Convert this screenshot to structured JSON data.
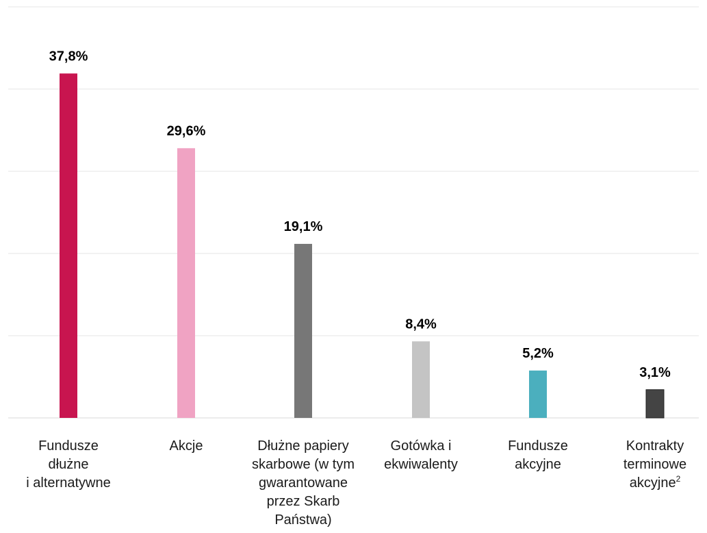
{
  "chart_data": {
    "type": "bar",
    "categories": [
      "Fundusze dłużne i alternatywne",
      "Akcje",
      "Dłużne papiery skarbowe (w tym gwarantowane przez Skarb Państwa)",
      "Gotówka i ekwiwalenty",
      "Fundusze akcyjne",
      "Kontrakty terminowe akcyjne²"
    ],
    "category_lines": [
      [
        "Fundusze",
        "dłużne",
        "i alternatywne"
      ],
      [
        "Akcje"
      ],
      [
        "Dłużne papiery",
        "skarbowe (w tym",
        "gwarantowane",
        "przez Skarb",
        "Państwa)"
      ],
      [
        "Gotówka i",
        "ekwiwalenty"
      ],
      [
        "Fundusze",
        "akcyjne"
      ],
      [
        "Kontrakty",
        "terminowe",
        "akcyjne",
        {
          "text": "akcyjne",
          "sup": "2"
        }
      ]
    ],
    "values": [
      37.8,
      29.6,
      19.1,
      8.4,
      5.2,
      3.1
    ],
    "value_labels": [
      "37,8%",
      "29,6%",
      "19,1%",
      "8,4%",
      "5,2%",
      "3,1%"
    ],
    "colors": [
      "#c8154f",
      "#f0a3c3",
      "#777777",
      "#c4c4c4",
      "#4bafbe",
      "#444444"
    ],
    "title": "",
    "xlabel": "",
    "ylabel": "",
    "ylim": [
      0,
      45
    ],
    "grid": true,
    "legend": "none"
  }
}
